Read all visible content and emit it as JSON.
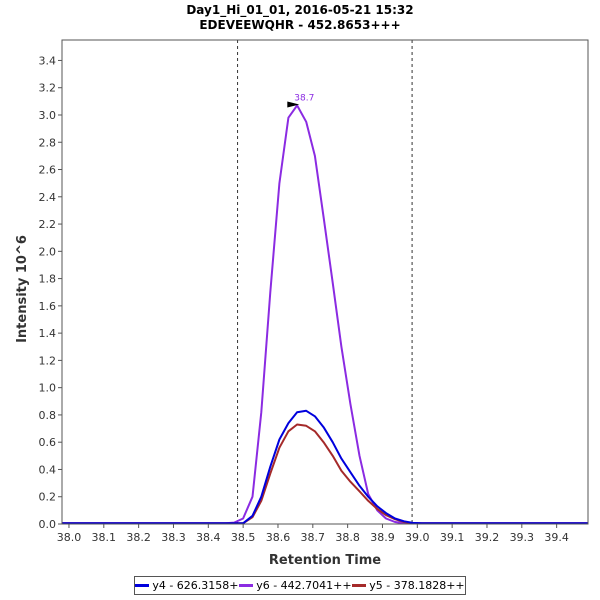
{
  "chart_data": {
    "type": "line",
    "title": "Day1_Hi_01_01, 2016-05-21 15:32",
    "subtitle": "EDEVEEWQHR - 452.8653+++",
    "xlabel": "Retention Time",
    "ylabel": "Intensity 10^6",
    "xlim": [
      37.98,
      39.49
    ],
    "ylim": [
      0,
      3.55
    ],
    "xticks": [
      "38.0",
      "38.1",
      "38.2",
      "38.3",
      "38.4",
      "38.5",
      "38.6",
      "38.7",
      "38.8",
      "38.9",
      "39.0",
      "39.1",
      "39.2",
      "39.3",
      "39.4"
    ],
    "yticks": [
      "0.0",
      "0.2",
      "0.4",
      "0.6",
      "0.8",
      "1.0",
      "1.2",
      "1.4",
      "1.6",
      "1.8",
      "2.0",
      "2.2",
      "2.4",
      "2.6",
      "2.8",
      "3.0",
      "3.2",
      "3.4"
    ],
    "vlines": [
      38.484,
      38.985
    ],
    "annotation": {
      "text": "38.7",
      "x": 38.667,
      "y": 3.07,
      "color": "#8b2be2"
    },
    "series": [
      {
        "name": "y4 - 626.3158+",
        "color": "#0000dd",
        "x": [
          37.98,
          38.45,
          38.474,
          38.5,
          38.527,
          38.552,
          38.578,
          38.604,
          38.63,
          38.655,
          38.681,
          38.706,
          38.731,
          38.757,
          38.782,
          38.808,
          38.834,
          38.859,
          38.885,
          38.91,
          38.936,
          38.962,
          38.987,
          39.013,
          39.49
        ],
        "values": [
          0.005,
          0.005,
          0.005,
          0.005,
          0.06,
          0.2,
          0.42,
          0.62,
          0.74,
          0.82,
          0.83,
          0.79,
          0.71,
          0.6,
          0.48,
          0.38,
          0.28,
          0.2,
          0.13,
          0.08,
          0.04,
          0.02,
          0.008,
          0.005,
          0.005
        ]
      },
      {
        "name": "y6 - 442.7041++",
        "color": "#8b2be2",
        "x": [
          37.98,
          38.45,
          38.474,
          38.5,
          38.527,
          38.552,
          38.578,
          38.604,
          38.63,
          38.655,
          38.681,
          38.706,
          38.731,
          38.757,
          38.782,
          38.808,
          38.834,
          38.859,
          38.885,
          38.91,
          38.936,
          38.962,
          38.987,
          39.013,
          39.49
        ],
        "values": [
          0.005,
          0.005,
          0.01,
          0.04,
          0.2,
          0.82,
          1.7,
          2.5,
          2.98,
          3.07,
          2.95,
          2.7,
          2.25,
          1.77,
          1.3,
          0.88,
          0.5,
          0.22,
          0.1,
          0.04,
          0.015,
          0.005,
          0.005,
          0.005,
          0.005
        ]
      },
      {
        "name": "y5 - 378.1828++",
        "color": "#a52a2a",
        "x": [
          37.98,
          38.45,
          38.474,
          38.5,
          38.527,
          38.552,
          38.578,
          38.604,
          38.63,
          38.655,
          38.681,
          38.706,
          38.731,
          38.757,
          38.782,
          38.808,
          38.834,
          38.859,
          38.885,
          38.91,
          38.936,
          38.962,
          38.987,
          39.013,
          39.49
        ],
        "values": [
          0.005,
          0.005,
          0.005,
          0.005,
          0.05,
          0.17,
          0.37,
          0.56,
          0.68,
          0.73,
          0.72,
          0.68,
          0.6,
          0.5,
          0.39,
          0.31,
          0.24,
          0.17,
          0.11,
          0.065,
          0.035,
          0.015,
          0.006,
          0.005,
          0.005
        ]
      }
    ]
  }
}
